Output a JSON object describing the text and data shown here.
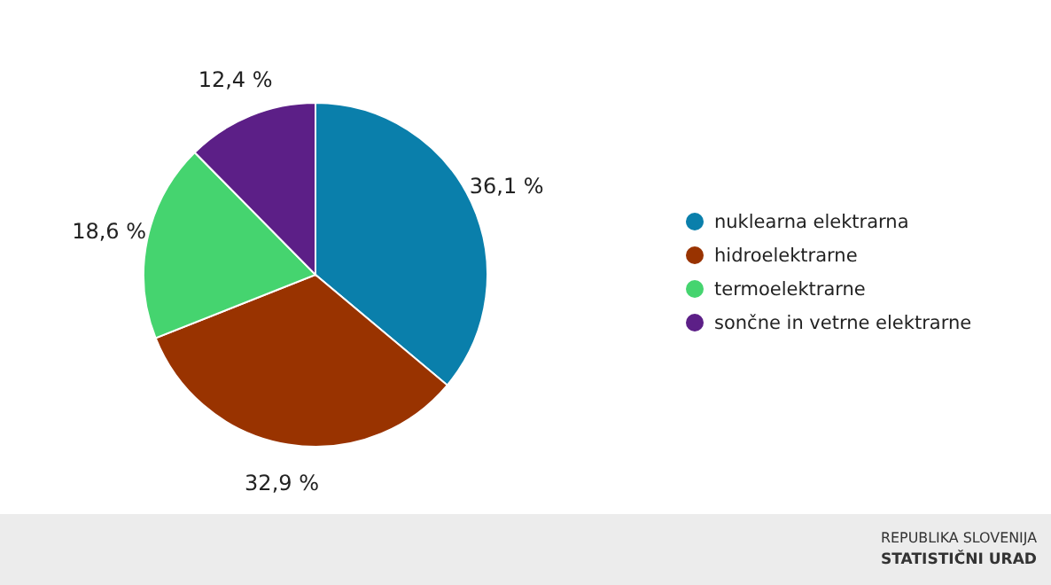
{
  "chart_data": {
    "type": "pie",
    "categories": [
      "nuklearna elektrarna",
      "hidroelektrarne",
      "termoelektrarne",
      "sončne in vetrne elektrarne"
    ],
    "values": [
      36.1,
      32.9,
      18.6,
      12.4
    ],
    "value_labels": [
      "36,1 %",
      "32,9 %",
      "18,6 %",
      "12,4 %"
    ],
    "colors": [
      "#0a7fab",
      "#993300",
      "#45d46f",
      "#5c1f87"
    ],
    "legend": "right",
    "annotations": [
      "REPUBLIKA SLOVENIJA",
      "STATISTIČNI URAD"
    ]
  }
}
